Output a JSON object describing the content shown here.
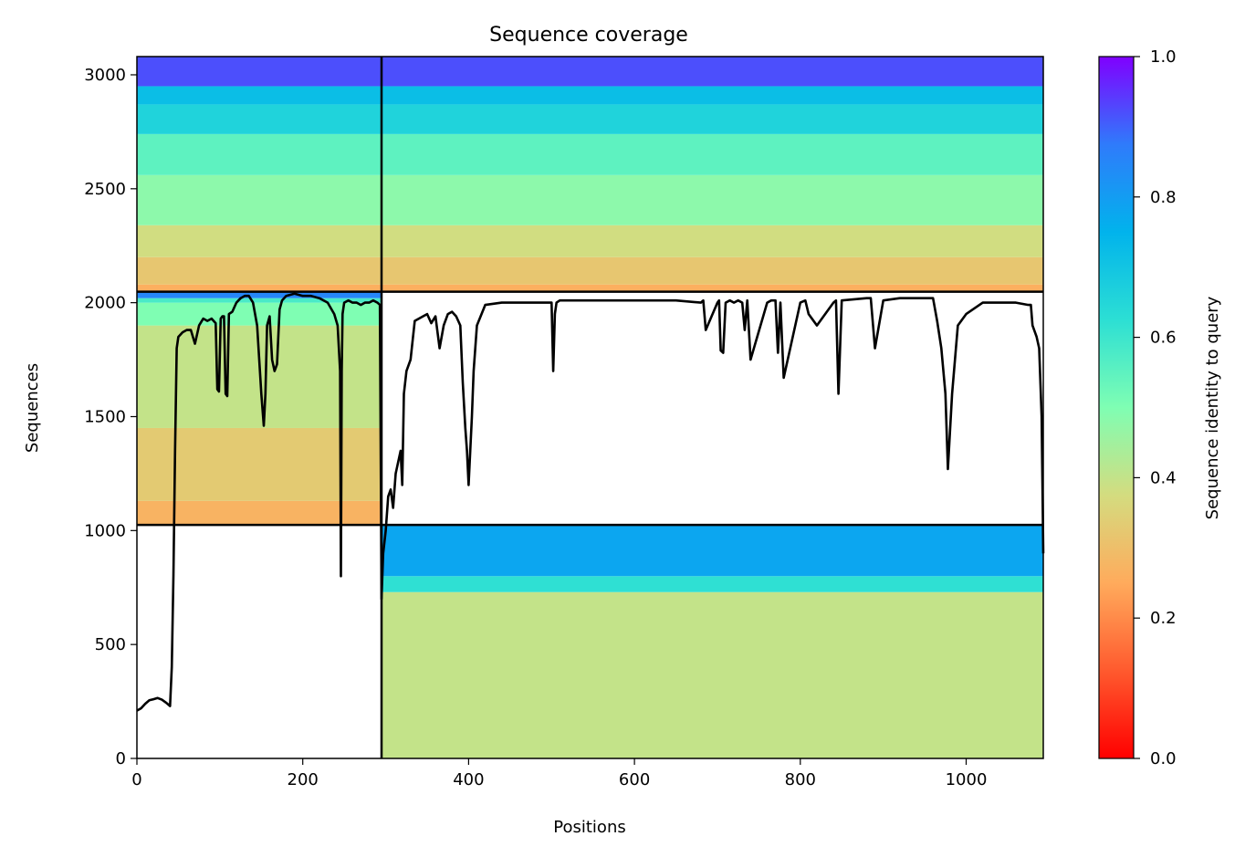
{
  "chart_data": {
    "type": "heatmap",
    "title": "Sequence coverage",
    "xlabel": "Positions",
    "ylabel": "Sequences",
    "xlim": [
      0,
      1093
    ],
    "ylim": [
      0,
      3080
    ],
    "xticks": [
      0,
      200,
      400,
      600,
      800,
      1000
    ],
    "yticks": [
      0,
      500,
      1000,
      1500,
      2000,
      2500,
      3000
    ],
    "colorbar": {
      "label": "Sequence identity to query",
      "colormap": "rainbow_r",
      "range": [
        0,
        1
      ],
      "ticks": [
        0.0,
        0.2,
        0.4,
        0.6,
        0.8,
        1.0
      ],
      "tick_labels": [
        "0.0",
        "0.2",
        "0.4",
        "0.6",
        "0.8",
        "1.0"
      ]
    },
    "block_divider_x": 295,
    "block_divider_y": [
      1025,
      2048
    ],
    "blocks": [
      {
        "name": "block-1",
        "x": [
          295,
          1093
        ],
        "y": [
          0,
          1025
        ],
        "bands": [
          {
            "y": [
              0,
              730
            ],
            "identity": 0.4
          },
          {
            "y": [
              730,
              800
            ],
            "identity": 0.62
          },
          {
            "y": [
              800,
              1025
            ],
            "identity": 0.78
          }
        ]
      },
      {
        "name": "block-2",
        "x": [
          0,
          295
        ],
        "y": [
          1025,
          2048
        ],
        "bands": [
          {
            "y": [
              1025,
              1130
            ],
            "identity": 0.27
          },
          {
            "y": [
              1130,
              1450
            ],
            "identity": 0.33
          },
          {
            "y": [
              1450,
              1900
            ],
            "identity": 0.4
          },
          {
            "y": [
              1900,
              2000
            ],
            "identity": 0.5
          },
          {
            "y": [
              2000,
              2020
            ],
            "identity": 0.58
          },
          {
            "y": [
              2020,
              2048
            ],
            "identity": 0.85
          }
        ]
      },
      {
        "name": "block-3",
        "x": [
          0,
          1093
        ],
        "y": [
          2048,
          3080
        ],
        "bands": [
          {
            "y": [
              2048,
              2080
            ],
            "identity": 0.26
          },
          {
            "y": [
              2080,
              2200
            ],
            "identity": 0.32
          },
          {
            "y": [
              2200,
              2340
            ],
            "identity": 0.38
          },
          {
            "y": [
              2340,
              2560
            ],
            "identity": 0.48
          },
          {
            "y": [
              2560,
              2740
            ],
            "identity": 0.55
          },
          {
            "y": [
              2740,
              2870
            ],
            "identity": 0.66
          },
          {
            "y": [
              2870,
              2950
            ],
            "identity": 0.72
          },
          {
            "y": [
              2950,
              3080
            ],
            "identity": 0.92
          }
        ]
      }
    ],
    "coverage_line": {
      "x": [
        0,
        5,
        10,
        15,
        20,
        25,
        30,
        35,
        40,
        42,
        44,
        46,
        48,
        50,
        55,
        60,
        65,
        70,
        75,
        80,
        85,
        90,
        95,
        97,
        99,
        101,
        103,
        105,
        107,
        109,
        111,
        115,
        120,
        125,
        130,
        135,
        140,
        145,
        150,
        153,
        155,
        157,
        160,
        163,
        166,
        169,
        172,
        175,
        180,
        190,
        200,
        210,
        220,
        230,
        238,
        242,
        245,
        246,
        247,
        248,
        250,
        255,
        260,
        265,
        270,
        275,
        280,
        285,
        290,
        293,
        295,
        297,
        300,
        303,
        306,
        309,
        312,
        315,
        318,
        320,
        322,
        325,
        330,
        335,
        340,
        345,
        350,
        355,
        360,
        365,
        370,
        375,
        380,
        385,
        390,
        393,
        396,
        398,
        400,
        402,
        404,
        406,
        410,
        420,
        440,
        460,
        480,
        500,
        502,
        504,
        506,
        510,
        550,
        600,
        650,
        680,
        683,
        686,
        700,
        702,
        704,
        707,
        710,
        715,
        720,
        725,
        730,
        733,
        736,
        740,
        760,
        765,
        770,
        773,
        776,
        780,
        800,
        806,
        810,
        820,
        840,
        843,
        846,
        850,
        880,
        885,
        890,
        900,
        920,
        950,
        960,
        965,
        970,
        975,
        978,
        980,
        983,
        990,
        1000,
        1020,
        1040,
        1060,
        1075,
        1078,
        1080,
        1085,
        1088,
        1091,
        1093
      ],
      "y": [
        210,
        220,
        240,
        255,
        260,
        265,
        258,
        245,
        230,
        400,
        800,
        1350,
        1800,
        1850,
        1870,
        1880,
        1880,
        1820,
        1900,
        1930,
        1920,
        1930,
        1910,
        1620,
        1610,
        1930,
        1940,
        1940,
        1600,
        1590,
        1950,
        1960,
        2000,
        2020,
        2030,
        2030,
        2000,
        1900,
        1600,
        1460,
        1600,
        1900,
        1940,
        1750,
        1700,
        1730,
        1970,
        2010,
        2030,
        2040,
        2030,
        2030,
        2020,
        2000,
        1950,
        1900,
        1700,
        800,
        1700,
        1950,
        2000,
        2010,
        2000,
        2000,
        1990,
        2000,
        2000,
        2010,
        2000,
        1990,
        700,
        900,
        1000,
        1150,
        1180,
        1100,
        1250,
        1300,
        1350,
        1200,
        1600,
        1700,
        1750,
        1920,
        1930,
        1940,
        1950,
        1910,
        1940,
        1800,
        1900,
        1950,
        1960,
        1940,
        1900,
        1650,
        1450,
        1350,
        1200,
        1350,
        1500,
        1700,
        1900,
        1990,
        2000,
        2000,
        2000,
        2000,
        1700,
        1950,
        2000,
        2010,
        2010,
        2010,
        2010,
        2000,
        2010,
        1880,
        2000,
        2010,
        1790,
        1780,
        2000,
        2010,
        2000,
        2010,
        2000,
        1880,
        2010,
        1750,
        2000,
        2010,
        2010,
        1780,
        2000,
        1670,
        2000,
        2010,
        1950,
        1900,
        2000,
        2010,
        1600,
        2010,
        2020,
        2020,
        1800,
        2010,
        2020,
        2020,
        2020,
        1920,
        1800,
        1600,
        1270,
        1400,
        1600,
        1900,
        1950,
        2000,
        2000,
        2000,
        1990,
        1990,
        1900,
        1850,
        1800,
        1500,
        900
      ]
    }
  }
}
